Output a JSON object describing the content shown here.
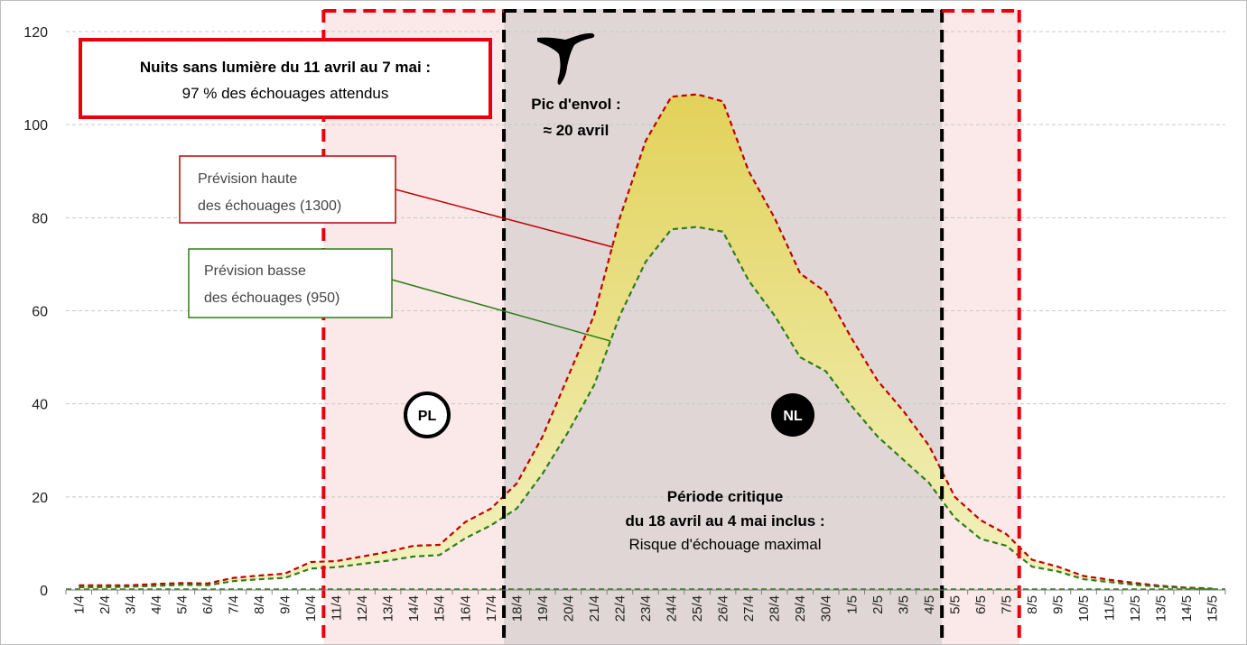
{
  "chart_data": {
    "type": "area",
    "categories": [
      "1/4",
      "2/4",
      "3/4",
      "4/4",
      "5/4",
      "6/4",
      "7/4",
      "8/4",
      "9/4",
      "10/4",
      "11/4",
      "12/4",
      "13/4",
      "14/4",
      "15/4",
      "16/4",
      "17/4",
      "18/4",
      "19/4",
      "20/4",
      "21/4",
      "22/4",
      "23/4",
      "24/4",
      "25/4",
      "26/4",
      "27/4",
      "28/4",
      "29/4",
      "30/4",
      "1/5",
      "2/5",
      "3/5",
      "4/5",
      "5/5",
      "6/5",
      "7/5",
      "8/5",
      "9/5",
      "10/5",
      "11/5",
      "12/5",
      "13/5",
      "14/5",
      "15/5"
    ],
    "series": [
      {
        "name": "Prévision haute des échouages (1300)",
        "color": "#c00000",
        "values": [
          1,
          1,
          1,
          1.3,
          1.5,
          1.4,
          2.6,
          3.1,
          3.5,
          6,
          6.2,
          7.2,
          8.2,
          9.5,
          9.7,
          14.6,
          17.5,
          22.9,
          33,
          46,
          59,
          80,
          96.5,
          106,
          106.5,
          105,
          90,
          80,
          68,
          64,
          54,
          45,
          38.5,
          31,
          20,
          15,
          12,
          6.5,
          5,
          3,
          2.2,
          1.5,
          0.9,
          0.5,
          0.3
        ]
      },
      {
        "name": "Prévision basse des échouages (950)",
        "color": "#2e7d1a",
        "values": [
          0.6,
          0.6,
          0.7,
          0.9,
          1.1,
          1.0,
          1.9,
          2.3,
          2.6,
          4.6,
          4.9,
          5.6,
          6.3,
          7.2,
          7.5,
          11.1,
          13.9,
          17.5,
          25,
          34,
          44,
          59,
          70.5,
          77.5,
          78,
          77,
          66.5,
          59,
          50,
          47,
          39.5,
          33,
          28,
          23,
          15.5,
          11,
          9.5,
          5,
          4,
          2.3,
          1.7,
          1.1,
          0.7,
          0.4,
          0.2
        ]
      }
    ],
    "ylim": [
      0,
      120
    ],
    "yticks": [
      0,
      20,
      40,
      60,
      80,
      100,
      120
    ],
    "xlabel": "",
    "ylabel": "",
    "grid": "horizontal dashed",
    "fill_between": {
      "from": "#f2f2c0",
      "to": "#e2d25a"
    },
    "periods": {
      "no_light": {
        "start": "11/4",
        "end": "7/5",
        "color": "#fbe9e9",
        "border": "#e8000b"
      },
      "critical": {
        "start": "18/4",
        "end": "4/5",
        "color": "#e0d6d6",
        "border": "#000000"
      }
    }
  },
  "annotations": {
    "nights_box": {
      "line1": "Nuits sans lumière du 11 avril au 7 mai :",
      "line2": "97 % des échouages attendus",
      "border_color": "#e8000b"
    },
    "peak": {
      "line1": "Pic d'envol :",
      "line2": "≈ 20 avril"
    },
    "high_label": {
      "line1": "Prévision haute",
      "line2": "des échouages (1300)",
      "border_color": "#c00000"
    },
    "low_label": {
      "line1": "Prévision basse",
      "line2": "des échouages (950)",
      "border_color": "#2e7d1a"
    },
    "pl_marker": "PL",
    "nl_marker": "NL",
    "critical": {
      "line1": "Période critique",
      "line2": "du 18 avril au 4 mai inclus :",
      "line3": "Risque d'échouage maximal"
    }
  }
}
